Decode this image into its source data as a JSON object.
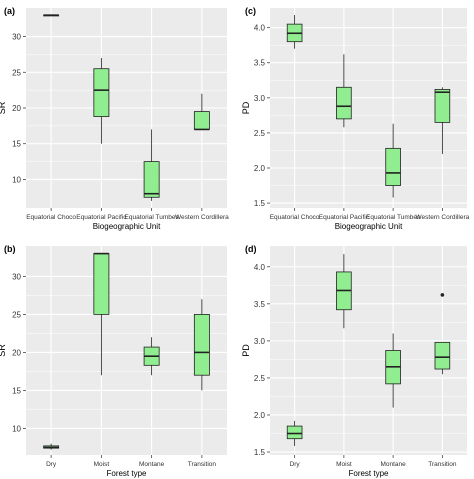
{
  "colors": {
    "box_fill": "#90EE90",
    "panel_bg": "#EBEBEB",
    "grid": "#FFFFFF",
    "line": "#222222",
    "text": "#333333"
  },
  "chart_data": [
    {
      "id": "a",
      "type": "box",
      "panel_label": "(a)",
      "ylabel": "SR",
      "xlabel": "Biogeographic  Unit",
      "ylim": [
        6,
        34
      ],
      "yticks": [
        10,
        15,
        20,
        25,
        30
      ],
      "grid": true,
      "categories": [
        "Equatorial  Choco",
        "Equatorial  Pacific",
        "Equatorial  Tumbes",
        "Western  Cordillera"
      ],
      "boxes": [
        {
          "low": 33,
          "q1": 33,
          "median": 33,
          "q3": 33,
          "high": 33
        },
        {
          "low": 15,
          "q1": 18.8,
          "median": 22.5,
          "q3": 25.5,
          "high": 27
        },
        {
          "low": 7,
          "q1": 7.5,
          "median": 8,
          "q3": 12.5,
          "high": 17
        },
        {
          "low": 17,
          "q1": 17,
          "median": 17,
          "q3": 19.5,
          "high": 22
        }
      ],
      "outliers": []
    },
    {
      "id": "c",
      "type": "box",
      "panel_label": "(c)",
      "ylabel": "PD",
      "xlabel": "Biogeographic  Unit",
      "ylim": [
        1.43,
        4.28
      ],
      "yticks": [
        1.5,
        2.0,
        2.5,
        3.0,
        3.5,
        4.0
      ],
      "ytick_labels": [
        "1.5",
        "2.0",
        "2.5",
        "3.0",
        "3.5",
        "4.0"
      ],
      "grid": true,
      "categories": [
        "Equatorial  Choco",
        "Equatorial  Pacific",
        "Equatorial  Tumbes",
        "Western  Cordillera"
      ],
      "boxes": [
        {
          "low": 3.7,
          "q1": 3.8,
          "median": 3.92,
          "q3": 4.05,
          "high": 4.18
        },
        {
          "low": 2.58,
          "q1": 2.7,
          "median": 2.88,
          "q3": 3.15,
          "high": 3.62
        },
        {
          "low": 1.58,
          "q1": 1.75,
          "median": 1.93,
          "q3": 2.28,
          "high": 2.63
        },
        {
          "low": 2.2,
          "q1": 2.65,
          "median": 3.08,
          "q3": 3.12,
          "high": 3.15
        }
      ],
      "outliers": []
    },
    {
      "id": "b",
      "type": "box",
      "panel_label": "(b)",
      "ylabel": "SR",
      "xlabel": "Forest type",
      "ylim": [
        6.5,
        34
      ],
      "yticks": [
        10,
        15,
        20,
        25,
        30
      ],
      "grid": true,
      "categories": [
        "Dry",
        "Moist",
        "Montane",
        "Transition"
      ],
      "boxes": [
        {
          "low": 7.2,
          "q1": 7.4,
          "median": 7.5,
          "q3": 7.7,
          "high": 8
        },
        {
          "low": 17,
          "q1": 25,
          "median": 33,
          "q3": 33,
          "high": 33
        },
        {
          "low": 17,
          "q1": 18.3,
          "median": 19.5,
          "q3": 20.7,
          "high": 22
        },
        {
          "low": 15,
          "q1": 17,
          "median": 20,
          "q3": 25,
          "high": 27
        }
      ],
      "outliers": []
    },
    {
      "id": "d",
      "type": "box",
      "panel_label": "(d)",
      "ylabel": "PD",
      "xlabel": "Forest type",
      "ylim": [
        1.46,
        4.28
      ],
      "yticks": [
        1.5,
        2.0,
        2.5,
        3.0,
        3.5,
        4.0
      ],
      "ytick_labels": [
        "1.5",
        "2.0",
        "2.5",
        "3.0",
        "3.5",
        "4.0"
      ],
      "grid": true,
      "categories": [
        "Dry",
        "Moist",
        "Montane",
        "Transition"
      ],
      "boxes": [
        {
          "low": 1.58,
          "q1": 1.68,
          "median": 1.75,
          "q3": 1.85,
          "high": 1.92
        },
        {
          "low": 3.17,
          "q1": 3.42,
          "median": 3.68,
          "q3": 3.93,
          "high": 4.17
        },
        {
          "low": 2.1,
          "q1": 2.42,
          "median": 2.65,
          "q3": 2.87,
          "high": 3.1
        },
        {
          "low": 2.55,
          "q1": 2.62,
          "median": 2.78,
          "q3": 2.98,
          "high": 2.98
        }
      ],
      "outliers": [
        {
          "category": 3,
          "value": 3.62
        }
      ]
    }
  ]
}
